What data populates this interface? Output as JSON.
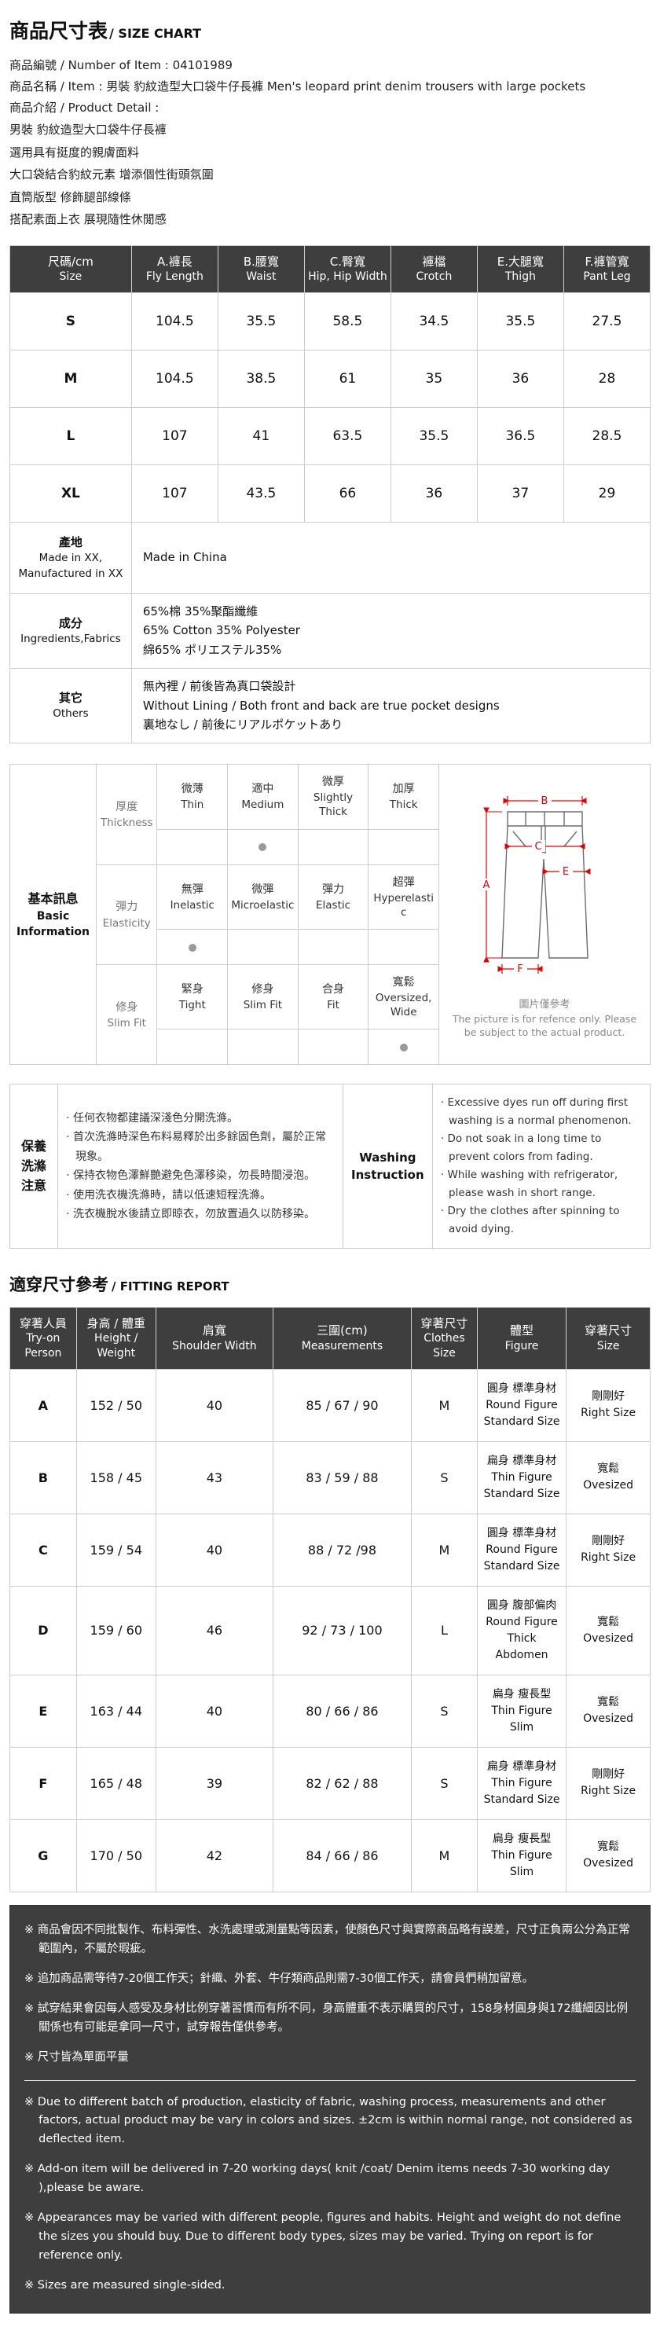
{
  "colors": {
    "header_bg": "#3e3e3e",
    "footer_bg": "#3e3e3e",
    "table_border": "#cccccc",
    "selected_dot": "#9a9a9a",
    "diagram_arrow": "#e60000"
  },
  "page_title": {
    "zh": "商品尺寸表",
    "en": "/ SIZE CHART"
  },
  "product_info": {
    "number_line": "商品編號 / Number of Item : 04101989",
    "item_line": "商品名稱 / Item : 男裝 豹紋造型大口袋牛仔長褲 Men's leopard print denim trousers with large pockets",
    "detail_label": "商品介紹 / Product Detail :"
  },
  "product_details": [
    "男裝 豹紋造型大口袋牛仔長褲",
    "選用具有挺度的親膚面料",
    "大口袋結合豹紋元素 增添個性街頭氛圍",
    "直筒版型 修飾腿部線條",
    "搭配素面上衣 展現隨性休閒感"
  ],
  "size_chart": {
    "headers": [
      {
        "zh": "尺碼/cm",
        "en": "Size"
      },
      {
        "zh": "A.褲長",
        "en": "Fly Length"
      },
      {
        "zh": "B.腰寬",
        "en": "Waist"
      },
      {
        "zh": "C.臀寬",
        "en": "Hip, Hip Width"
      },
      {
        "zh": "褲檔",
        "en": "Crotch"
      },
      {
        "zh": "E.大腿寬",
        "en": "Thigh"
      },
      {
        "zh": "F.褲管寬",
        "en": "Pant Leg"
      }
    ],
    "rows": [
      {
        "size": "S",
        "values": [
          "104.5",
          "35.5",
          "58.5",
          "34.5",
          "35.5",
          "27.5"
        ]
      },
      {
        "size": "M",
        "values": [
          "104.5",
          "38.5",
          "61",
          "35",
          "36",
          "28"
        ]
      },
      {
        "size": "L",
        "values": [
          "107",
          "41",
          "63.5",
          "35.5",
          "36.5",
          "28.5"
        ]
      },
      {
        "size": "XL",
        "values": [
          "107",
          "43.5",
          "66",
          "36",
          "37",
          "29"
        ]
      }
    ],
    "info_rows": [
      {
        "label_zh": "產地",
        "label_en": "Made in XX, Manufactured in XX",
        "lines": [
          "Made in China"
        ]
      },
      {
        "label_zh": "成分",
        "label_en": "Ingredients,Fabrics",
        "lines": [
          "65%棉 35%聚酯纖維",
          "65% Cotton 35% Polyester",
          "綿65% ポリエステル35%"
        ]
      },
      {
        "label_zh": "其它",
        "label_en": "Others",
        "lines": [
          "無內裡 / 前後皆為真口袋設計",
          "Without Lining / Both front and back are true pocket designs",
          "裏地なし / 前後にリアルポケットあり"
        ]
      }
    ]
  },
  "basic_info": {
    "title_zh": "基本訊息",
    "title_en": "Basic Information",
    "attributes": [
      {
        "label_zh": "厚度",
        "label_en": "Thickness",
        "selected": 1,
        "options": [
          {
            "zh": "微薄",
            "en": "Thin"
          },
          {
            "zh": "適中",
            "en": "Medium"
          },
          {
            "zh": "微厚",
            "en": "Slightly Thick"
          },
          {
            "zh": "加厚",
            "en": "Thick"
          }
        ]
      },
      {
        "label_zh": "彈力",
        "label_en": "Elasticity",
        "selected": 0,
        "options": [
          {
            "zh": "無彈",
            "en": "Inelastic"
          },
          {
            "zh": "微彈",
            "en": "Microelastic"
          },
          {
            "zh": "彈力",
            "en": "Elastic"
          },
          {
            "zh": "超彈",
            "en": "Hyperelastic"
          }
        ]
      },
      {
        "label_zh": "修身",
        "label_en": "Slim Fit",
        "selected": 3,
        "options": [
          {
            "zh": "緊身",
            "en": "Tight"
          },
          {
            "zh": "修身",
            "en": "Slim Fit"
          },
          {
            "zh": "合身",
            "en": "Fit"
          },
          {
            "zh": "寬鬆",
            "en": "Oversized, Wide"
          }
        ]
      }
    ],
    "diagram_labels": {
      "A": "A",
      "B": "B",
      "C": "C",
      "E": "E",
      "F": "F"
    },
    "diagram_note_zh": "圖片僅參考",
    "diagram_note_en": "The picture is for refence only. Please be subject to the actual product."
  },
  "washing": {
    "label_lines": [
      "保養",
      "洗滌",
      "注意"
    ],
    "zh_items": [
      "· 任何衣物都建議深淺色分開洗滌。",
      "· 首次洗滌時深色布料易釋於出多餘固色劑，屬於正常現象。",
      "· 保持衣物色澤鮮艷避免色澤移染，勿長時間浸泡。",
      "· 使用洗衣機洗滌時，請以低速短程洗滌。",
      "· 洗衣機脫水後請立即晾衣，勿放置過久以防移染。"
    ],
    "center_label_1": "Washing",
    "center_label_2": "Instruction",
    "en_items": [
      "· Excessive dyes run off during first washing is a normal phenomenon.",
      "· Do not soak in a long time to prevent colors from fading.",
      "· While washing with refrigerator, please wash in short range.",
      "· Dry the clothes after spinning to avoid dying."
    ]
  },
  "fitting": {
    "title_zh": "適穿尺寸參考",
    "title_en": "/ FITTING REPORT",
    "headers": [
      {
        "zh": "穿著人員",
        "en": "Try-on Person"
      },
      {
        "zh": "身高 / 體重",
        "en": "Height / Weight"
      },
      {
        "zh": "肩寬",
        "en": "Shoulder Width"
      },
      {
        "zh": "三圍(cm)",
        "en": "Measurements"
      },
      {
        "zh": "穿著尺寸",
        "en": "Clothes Size"
      },
      {
        "zh": "體型",
        "en": "Figure"
      },
      {
        "zh": "穿著尺寸",
        "en": "Size"
      }
    ],
    "rows": [
      {
        "person": "A",
        "height_weight": "152 / 50",
        "shoulder": "40",
        "measurements": "85 / 67 / 90",
        "clothes_size": "M",
        "figure_zh": "圓身 標準身材",
        "figure_en": "Round Figure Standard Size",
        "fit_zh": "剛剛好",
        "fit_en": "Right Size"
      },
      {
        "person": "B",
        "height_weight": "158 / 45",
        "shoulder": "43",
        "measurements": "83 / 59 / 88",
        "clothes_size": "S",
        "figure_zh": "扁身 標準身材",
        "figure_en": "Thin Figure Standard Size",
        "fit_zh": "寬鬆",
        "fit_en": "Ovesized"
      },
      {
        "person": "C",
        "height_weight": "159 / 54",
        "shoulder": "40",
        "measurements": "88 / 72 /98",
        "clothes_size": "M",
        "figure_zh": "圓身 標準身材",
        "figure_en": "Round Figure Standard Size",
        "fit_zh": "剛剛好",
        "fit_en": "Right Size"
      },
      {
        "person": "D",
        "height_weight": "159 / 60",
        "shoulder": "46",
        "measurements": "92 / 73 / 100",
        "clothes_size": "L",
        "figure_zh": "圓身 腹部偏肉",
        "figure_en": "Round Figure Thick Abdomen",
        "fit_zh": "寬鬆",
        "fit_en": "Ovesized"
      },
      {
        "person": "E",
        "height_weight": "163 / 44",
        "shoulder": "40",
        "measurements": "80 / 66 / 86",
        "clothes_size": "S",
        "figure_zh": "扁身 瘦長型",
        "figure_en": "Thin Figure Slim",
        "fit_zh": "寬鬆",
        "fit_en": "Ovesized"
      },
      {
        "person": "F",
        "height_weight": "165 / 48",
        "shoulder": "39",
        "measurements": "82 / 62 / 88",
        "clothes_size": "S",
        "figure_zh": "扁身 標準身材",
        "figure_en": "Thin Figure Standard Size",
        "fit_zh": "剛剛好",
        "fit_en": "Right Size"
      },
      {
        "person": "G",
        "height_weight": "170 / 50",
        "shoulder": "42",
        "measurements": "84 / 66 / 86",
        "clothes_size": "M",
        "figure_zh": "扁身 瘦長型",
        "figure_en": "Thin Figure Slim",
        "fit_zh": "寬鬆",
        "fit_en": "Ovesized"
      }
    ]
  },
  "footer": {
    "zh_notes": [
      "※ 商品會因不同批製作、布料彈性、水洗處理或測量點等因素，使顏色尺寸與實際商品略有誤差，尺寸正負兩公分為正常範圍內，不屬於瑕疵。",
      "※ 追加商品需等待7-20個工作天；針織、外套、牛仔類商品則需7-30個工作天，請會員們稍加留意。",
      "※ 試穿結果會因每人感受及身材比例穿著習慣而有所不同，身高體重不表示購買的尺寸，158身材圓身與172纖細因比例關係也有可能是拿同一尺寸，試穿報告僅供參考。",
      "※ 尺寸皆為單面平量"
    ],
    "en_notes": [
      "※ Due to different batch of production, elasticity of fabric, washing process, measurements and other factors, actual product may be vary in colors and sizes. ±2cm is within normal range, not considered as deflected item.",
      "※ Add-on item will be delivered in 7-20 working days( knit /coat/ Denim items needs 7-30 working day ),please be aware.",
      "※ Appearances may be varied with different people, figures and habits. Height and weight do not define the sizes you should buy. Due to different body types, sizes may be varied. Trying on report is for reference only.",
      "※ Sizes are measured single-sided."
    ]
  }
}
